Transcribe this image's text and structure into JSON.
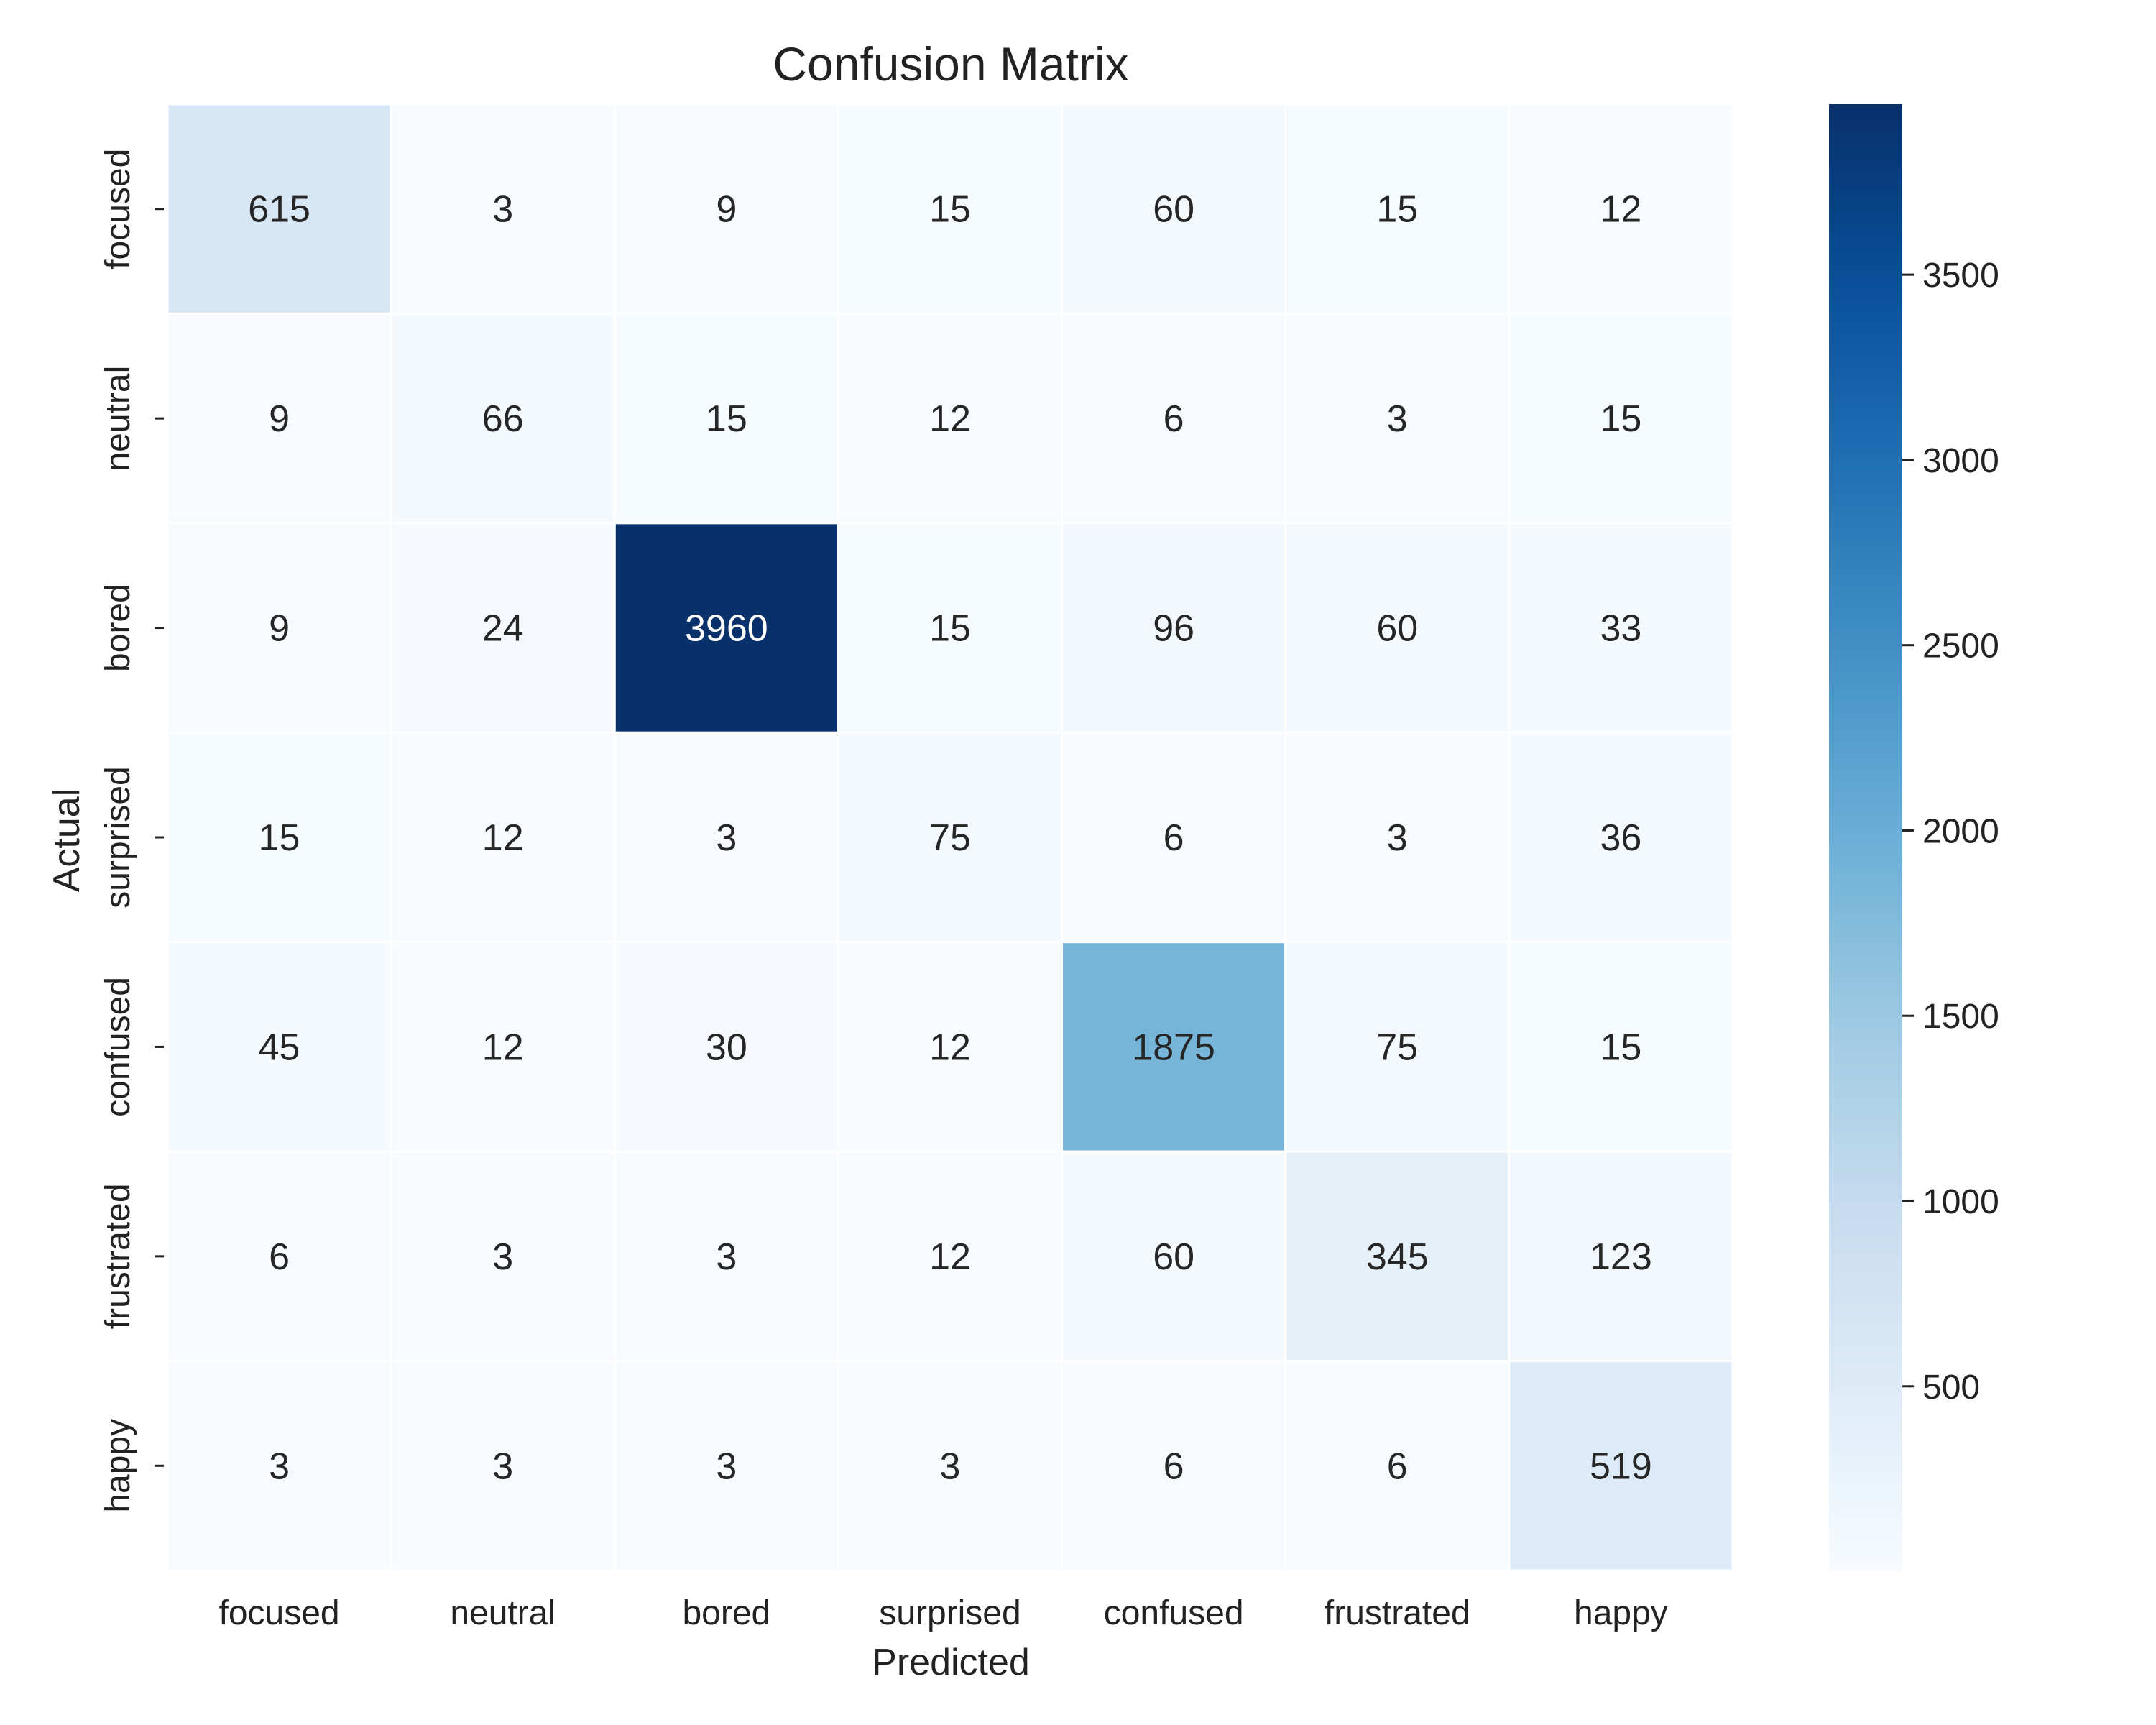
{
  "chart_data": {
    "type": "heatmap",
    "title": "Confusion Matrix",
    "xlabel": "Predicted",
    "ylabel": "Actual",
    "x_categories": [
      "focused",
      "neutral",
      "bored",
      "surprised",
      "confused",
      "frustrated",
      "happy"
    ],
    "y_categories": [
      "focused",
      "neutral",
      "bored",
      "surprised",
      "confused",
      "frustrated",
      "happy"
    ],
    "matrix": [
      [
        615,
        3,
        9,
        15,
        60,
        15,
        12
      ],
      [
        9,
        66,
        15,
        12,
        6,
        3,
        15
      ],
      [
        9,
        24,
        3960,
        15,
        96,
        60,
        33
      ],
      [
        15,
        12,
        3,
        75,
        6,
        3,
        36
      ],
      [
        45,
        12,
        30,
        12,
        1875,
        75,
        15
      ],
      [
        6,
        3,
        3,
        12,
        60,
        345,
        123
      ],
      [
        3,
        3,
        3,
        3,
        6,
        6,
        519
      ]
    ],
    "colormap": "Blues",
    "color_range": [
      3,
      3960
    ],
    "colorbar": {
      "ticks": [
        500,
        1000,
        1500,
        2000,
        2500,
        3000,
        3500
      ]
    },
    "grid": false
  }
}
